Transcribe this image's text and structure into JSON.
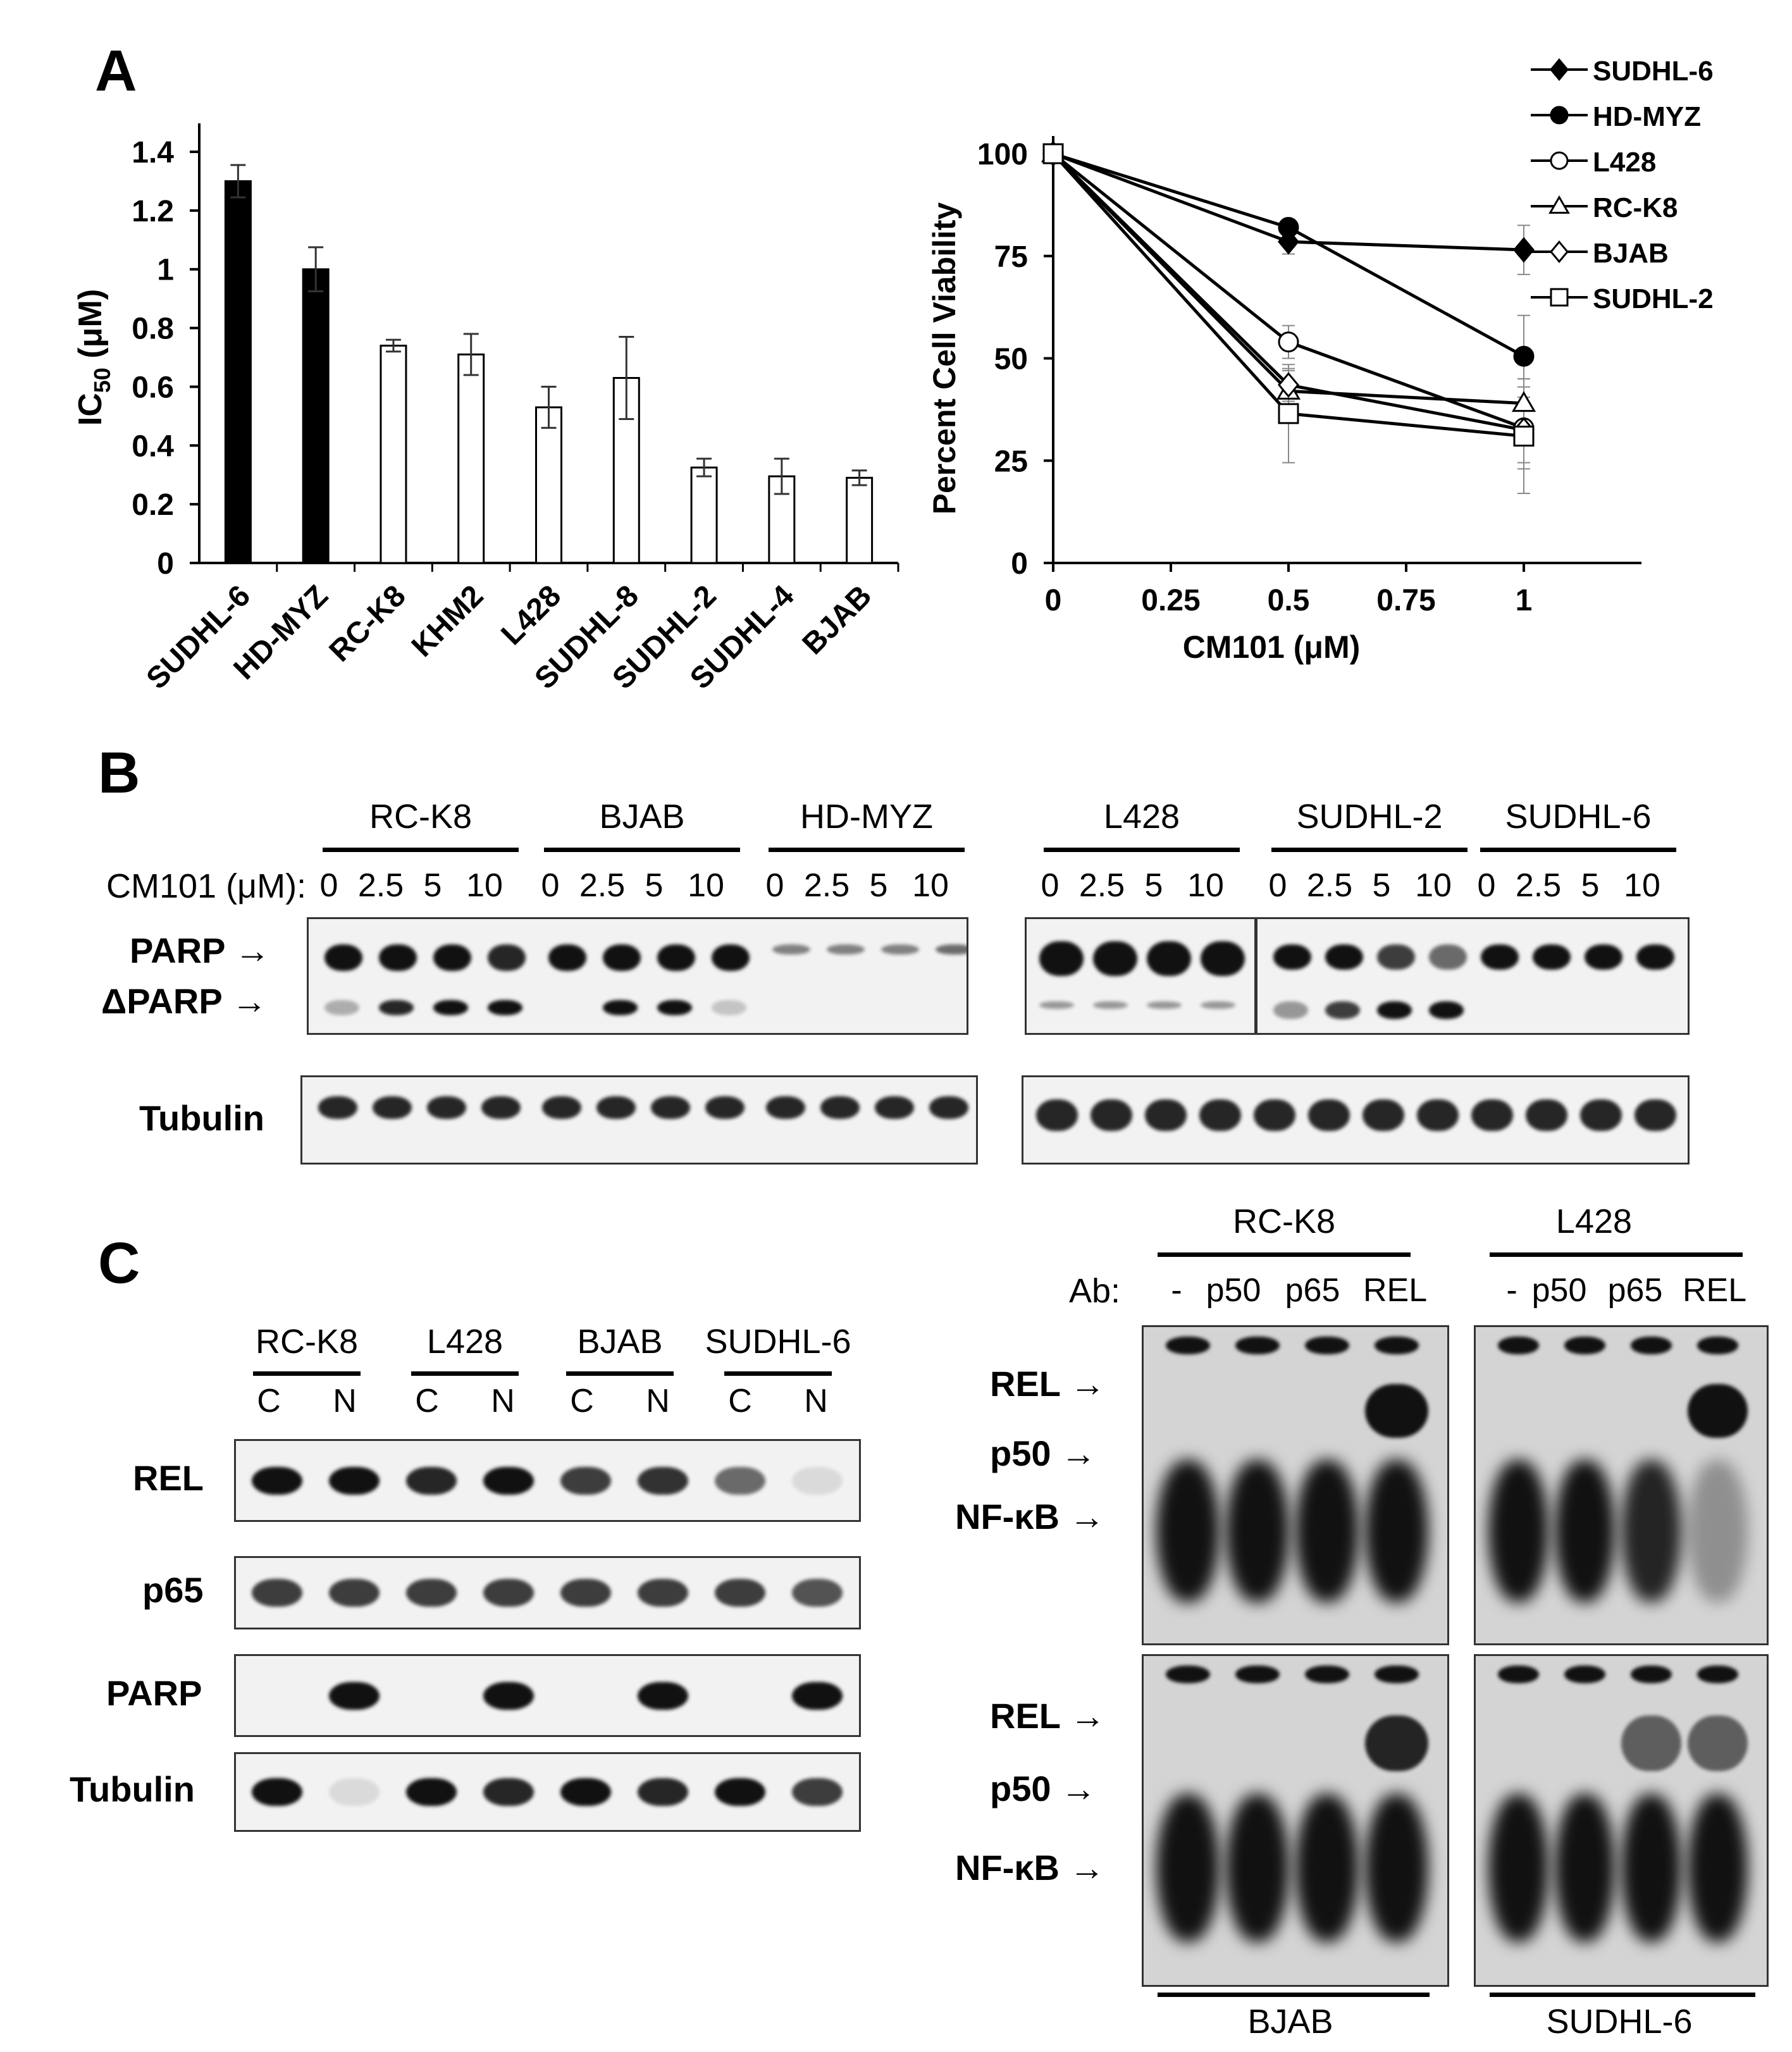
{
  "panel_letters": {
    "a": "A",
    "b": "B",
    "c": "C"
  },
  "chart_data": [
    {
      "type": "bar",
      "title": "",
      "ylabel": "IC50 (μM)",
      "xlabel": "",
      "categories": [
        "SUDHL-6",
        "HD-MYZ",
        "RC-K8",
        "KHM2",
        "L428",
        "SUDHL-8",
        "SUDHL-2",
        "SUDHL-4",
        "BJAB"
      ],
      "values": [
        1.3,
        1.0,
        0.74,
        0.71,
        0.53,
        0.63,
        0.325,
        0.295,
        0.29
      ],
      "errors": [
        0.055,
        0.075,
        0.02,
        0.07,
        0.07,
        0.14,
        0.03,
        0.06,
        0.025
      ],
      "bar_fill": [
        "black",
        "black",
        "white",
        "white",
        "white",
        "white",
        "white",
        "white",
        "white"
      ],
      "ylim": [
        0,
        1.4
      ],
      "yticks": [
        "0",
        "0.2",
        "0.4",
        "0.6",
        "0.8",
        "1",
        "1.2",
        "1.4"
      ],
      "grid": false
    },
    {
      "type": "line",
      "title": "",
      "xlabel": "CM101 (μM)",
      "ylabel": "Percent Cell Viability",
      "xlim": [
        0,
        1.25
      ],
      "ylim": [
        0,
        100
      ],
      "xticks": [
        "0",
        "0.25",
        "0.5",
        "0.75",
        "1"
      ],
      "yticks": [
        "0",
        "25",
        "50",
        "75",
        "100"
      ],
      "legend_position": "top-right",
      "x": [
        0,
        0.5,
        1
      ],
      "series": [
        {
          "name": "SUDHL-6",
          "marker": "diamond-filled",
          "values": [
            100,
            78.5,
            76.5
          ],
          "errors": [
            0,
            3,
            6
          ]
        },
        {
          "name": "HD-MYZ",
          "marker": "circle-filled",
          "values": [
            100,
            82,
            50.5
          ],
          "errors": [
            0,
            2,
            10
          ]
        },
        {
          "name": "L428",
          "marker": "circle-open",
          "values": [
            100,
            54,
            33
          ],
          "errors": [
            0,
            4,
            10
          ]
        },
        {
          "name": "RC-K8",
          "marker": "triangle-open",
          "values": [
            100,
            42,
            39
          ],
          "errors": [
            0,
            5,
            6
          ]
        },
        {
          "name": "BJAB",
          "marker": "diamond-open",
          "values": [
            100,
            43.5,
            32.5
          ],
          "errors": [
            0,
            4,
            8
          ]
        },
        {
          "name": "SUDHL-2",
          "marker": "square-open",
          "values": [
            100,
            36.5,
            31
          ],
          "errors": [
            0,
            12,
            14
          ]
        }
      ]
    }
  ],
  "panel_b": {
    "groups_left": [
      "RC-K8",
      "BJAB",
      "HD-MYZ"
    ],
    "groups_right": [
      "L428",
      "SUDHL-2",
      "SUDHL-6"
    ],
    "dose_label": "CM101 (μM):",
    "doses": [
      "0",
      "2.5",
      "5",
      "10"
    ],
    "parp_label": "PARP",
    "cleaved_parp_label": "ΔPARP",
    "tubulin_label": "Tubulin"
  },
  "panel_c_left": {
    "groups": [
      "RC-K8",
      "L428",
      "BJAB",
      "SUDHL-6"
    ],
    "fractions": [
      "C",
      "N"
    ],
    "rows": [
      "REL",
      "p65",
      "PARP",
      "Tubulin"
    ]
  },
  "panel_c_right": {
    "top_groups": [
      "RC-K8",
      "L428"
    ],
    "bottom_groups": [
      "BJAB",
      "SUDHL-6"
    ],
    "ab_label": "Ab:",
    "antibodies": [
      "-",
      "p50",
      "p65",
      "REL"
    ],
    "band_labels": [
      "REL",
      "p50",
      "NF-κB"
    ]
  }
}
